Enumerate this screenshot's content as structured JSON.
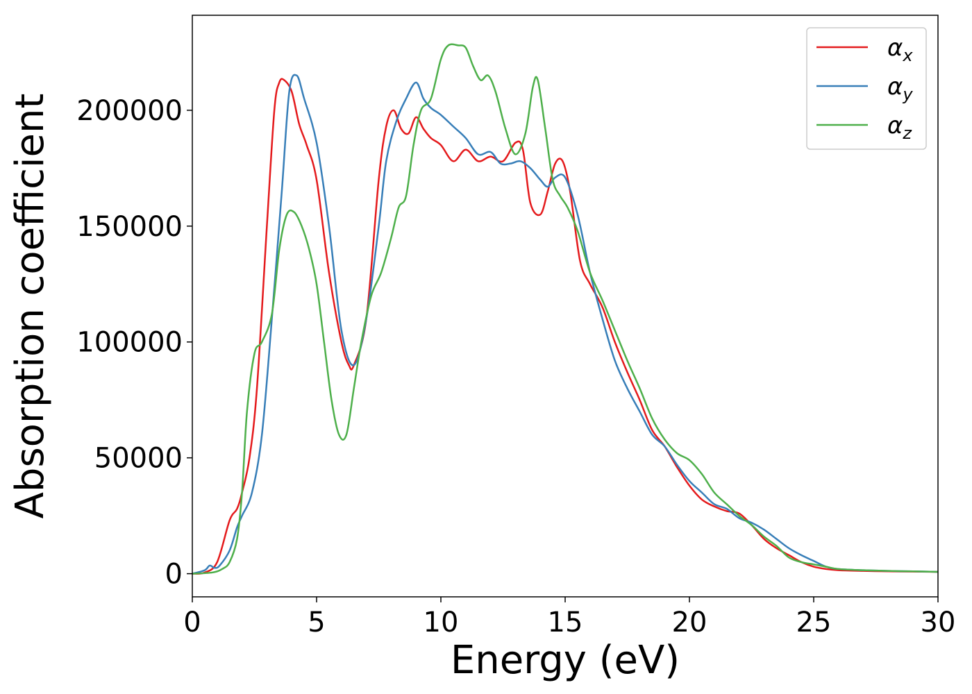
{
  "chart_data": {
    "type": "line",
    "xlabel": "Energy (eV)",
    "ylabel": "Absorption coefficient",
    "xlim": [
      0,
      30
    ],
    "ylim": [
      -10000,
      241000
    ],
    "xticks": [
      0,
      5,
      10,
      15,
      20,
      25,
      30
    ],
    "xtick_labels": [
      "0",
      "5",
      "10",
      "15",
      "20",
      "25",
      "30"
    ],
    "yticks": [
      0,
      50000,
      100000,
      150000,
      200000
    ],
    "ytick_labels": [
      "0",
      "50000",
      "100000",
      "150000",
      "200000"
    ],
    "grid": false,
    "legend_position": "top-right",
    "series": [
      {
        "name": "αx",
        "symbol": "α",
        "subscript": "x",
        "color": "#e41a1c",
        "x": [
          0,
          0.5,
          1.0,
          1.5,
          1.8,
          2.0,
          2.3,
          2.6,
          3.0,
          3.3,
          3.5,
          3.7,
          4.0,
          4.3,
          4.6,
          5.0,
          5.5,
          6.0,
          6.3,
          6.5,
          7.0,
          7.5,
          7.8,
          8.1,
          8.4,
          8.7,
          9.0,
          9.3,
          9.6,
          10.0,
          10.5,
          11.0,
          11.5,
          12.0,
          12.5,
          13.0,
          13.3,
          13.6,
          14.0,
          14.3,
          14.6,
          14.9,
          15.2,
          15.6,
          16.0,
          16.5,
          17.0,
          17.5,
          18.0,
          18.5,
          19.0,
          19.5,
          20.0,
          20.5,
          21.0,
          21.5,
          22.0,
          22.5,
          23.0,
          23.5,
          24.0,
          24.5,
          25.0,
          25.5,
          26.0,
          27.0,
          28.0,
          29.0,
          30.0
        ],
        "values": [
          0,
          500,
          5000,
          23000,
          28000,
          35000,
          50000,
          80000,
          150000,
          200000,
          212000,
          213000,
          208000,
          194000,
          185000,
          170000,
          130000,
          100000,
          90000,
          90000,
          110000,
          170000,
          193000,
          200000,
          192000,
          190000,
          197000,
          192000,
          188000,
          185000,
          178000,
          183000,
          178000,
          180000,
          178000,
          186000,
          183000,
          160000,
          155000,
          165000,
          177000,
          178000,
          165000,
          135000,
          125000,
          115000,
          100000,
          87000,
          75000,
          62000,
          55000,
          46000,
          38000,
          32000,
          29000,
          27000,
          26000,
          21000,
          15000,
          11000,
          8000,
          5000,
          3000,
          2000,
          1500,
          1200,
          1000,
          900,
          800
        ]
      },
      {
        "name": "αy",
        "symbol": "α",
        "subscript": "y",
        "color": "#377eb8",
        "x": [
          0,
          0.5,
          0.7,
          0.9,
          1.1,
          1.5,
          1.8,
          2.0,
          2.4,
          2.8,
          3.2,
          3.6,
          3.9,
          4.2,
          4.5,
          5.0,
          5.5,
          6.0,
          6.5,
          7.0,
          7.5,
          7.8,
          8.2,
          8.6,
          9.0,
          9.3,
          9.6,
          10.0,
          10.5,
          11.0,
          11.5,
          12.0,
          12.4,
          12.8,
          13.2,
          13.6,
          14.0,
          14.3,
          14.6,
          15.0,
          15.5,
          16.0,
          16.5,
          17.0,
          17.5,
          18.0,
          18.5,
          19.0,
          19.5,
          20.0,
          20.5,
          21.0,
          21.5,
          22.0,
          22.5,
          23.0,
          23.5,
          24.0,
          24.5,
          25.0,
          25.5,
          26.0,
          27.0,
          28.0,
          29.0,
          30.0
        ],
        "values": [
          0,
          1500,
          3500,
          2500,
          3500,
          10000,
          20000,
          25000,
          35000,
          60000,
          110000,
          165000,
          208000,
          215000,
          205000,
          186000,
          150000,
          105000,
          90000,
          110000,
          150000,
          178000,
          195000,
          205000,
          212000,
          205000,
          201000,
          198000,
          193000,
          188000,
          181000,
          182000,
          177000,
          177000,
          178000,
          175000,
          170000,
          167000,
          171000,
          171000,
          155000,
          130000,
          110000,
          92000,
          80000,
          70000,
          60000,
          55000,
          47000,
          40000,
          35000,
          30000,
          28000,
          24000,
          22000,
          19000,
          15000,
          11000,
          8000,
          5500,
          3000,
          2000,
          1500,
          1200,
          1000,
          800
        ]
      },
      {
        "name": "αz",
        "symbol": "α",
        "subscript": "z",
        "color": "#4daf4a",
        "x": [
          0,
          0.8,
          1.2,
          1.5,
          1.8,
          2.0,
          2.2,
          2.5,
          2.8,
          3.2,
          3.5,
          3.8,
          4.1,
          4.4,
          4.7,
          5.0,
          5.3,
          5.6,
          5.9,
          6.2,
          6.5,
          6.8,
          7.2,
          7.6,
          8.0,
          8.3,
          8.6,
          8.9,
          9.2,
          9.6,
          10.0,
          10.3,
          10.7,
          11.0,
          11.3,
          11.6,
          11.9,
          12.2,
          12.6,
          13.0,
          13.4,
          13.7,
          13.9,
          14.2,
          14.5,
          14.8,
          15.1,
          15.5,
          16.0,
          16.5,
          17.0,
          17.5,
          18.0,
          18.5,
          19.0,
          19.5,
          20.0,
          20.5,
          21.0,
          21.5,
          22.0,
          22.5,
          23.0,
          23.5,
          24.0,
          24.5,
          25.0,
          25.5,
          26.0,
          27.0,
          28.0,
          29.0,
          30.0
        ],
        "values": [
          0,
          500,
          2000,
          5000,
          15000,
          35000,
          70000,
          95000,
          100000,
          112000,
          140000,
          155000,
          156000,
          150000,
          140000,
          125000,
          100000,
          75000,
          60000,
          60000,
          80000,
          100000,
          120000,
          130000,
          145000,
          158000,
          163000,
          185000,
          200000,
          205000,
          222000,
          228000,
          228000,
          227000,
          219000,
          213000,
          215000,
          208000,
          192000,
          181000,
          190000,
          210000,
          213000,
          192000,
          170000,
          163000,
          158000,
          148000,
          130000,
          118000,
          105000,
          92000,
          80000,
          67000,
          58000,
          52000,
          49000,
          43000,
          35000,
          30000,
          25000,
          21000,
          16000,
          12000,
          7000,
          5000,
          4000,
          3000,
          2000,
          1500,
          1200,
          1000,
          800
        ]
      }
    ]
  }
}
